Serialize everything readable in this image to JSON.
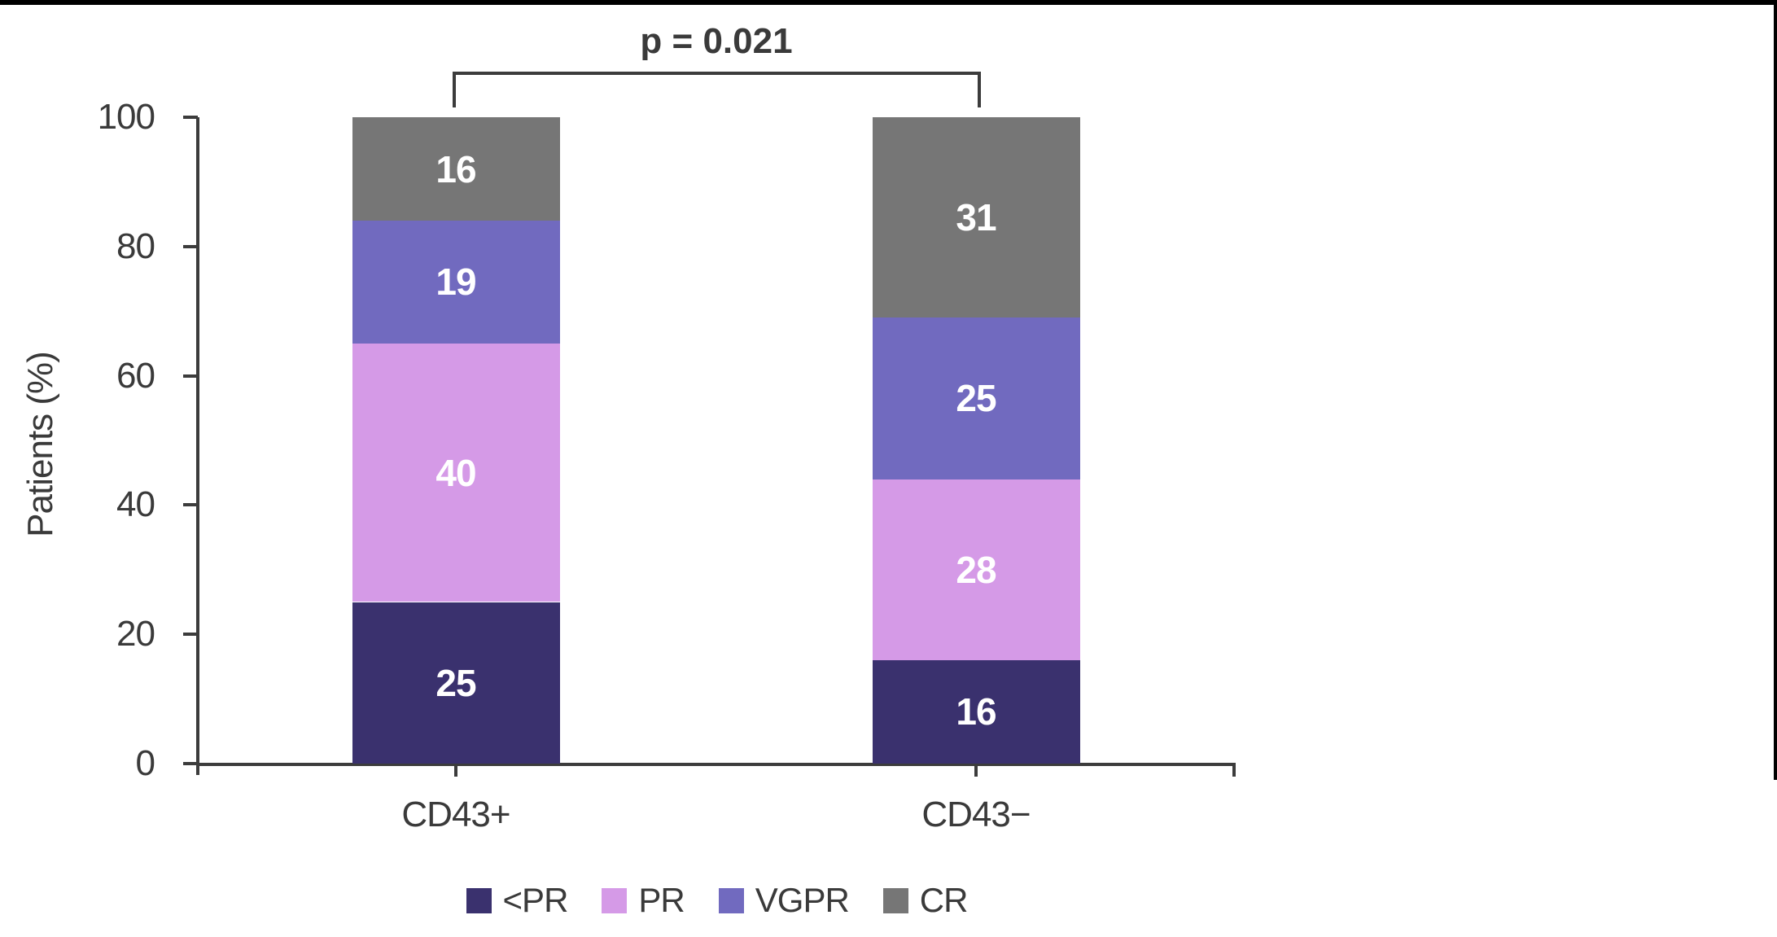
{
  "chart_data": {
    "type": "bar",
    "subtype": "stacked-percent",
    "ylabel": "Patients (%)",
    "ylim": [
      0,
      100
    ],
    "yticks": [
      0,
      20,
      40,
      60,
      80,
      100
    ],
    "categories": [
      "CD43+",
      "CD43−"
    ],
    "series": [
      {
        "name": "<PR",
        "color": "#3a316e",
        "values": [
          25,
          16
        ]
      },
      {
        "name": "PR",
        "color": "#d59ae7",
        "values": [
          40,
          28
        ]
      },
      {
        "name": "VGPR",
        "color": "#716abf",
        "values": [
          19,
          25
        ]
      },
      {
        "name": "CR",
        "color": "#767676",
        "values": [
          16,
          31
        ]
      }
    ],
    "value_labels": {
      "CD43+": [
        25,
        40,
        19,
        16
      ],
      "CD43-": [
        16,
        28,
        25,
        31
      ]
    },
    "annotation": {
      "text": "p = 0.021",
      "connects": [
        "CD43+",
        "CD43−"
      ]
    },
    "legend_position": "bottom",
    "grid": false,
    "colors": {
      "axis": "#3c3c3c",
      "tick_text": "#3a3a3a",
      "value_text": "#ffffff",
      "frame_bars": "#000000"
    }
  }
}
